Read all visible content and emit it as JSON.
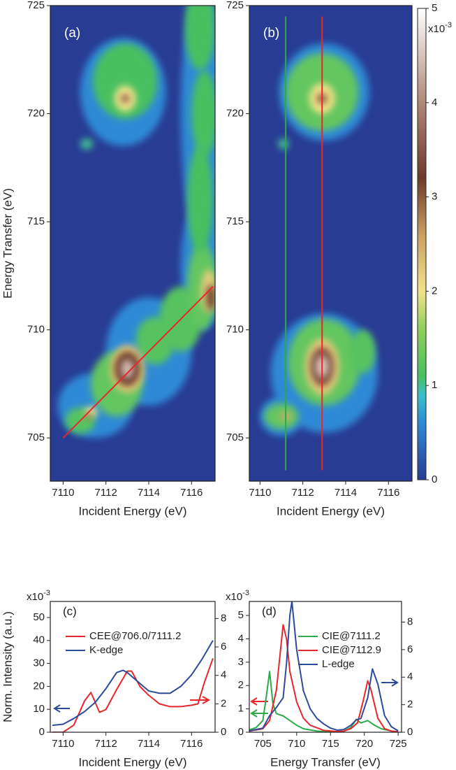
{
  "chart_data": [
    {
      "type": "heatmap",
      "label": "(a)",
      "xlabel": "Incident Energy (eV)",
      "ylabel": "Energy Transfer  (eV)",
      "xlim": [
        7109.4,
        7117.1
      ],
      "ylim": [
        703,
        725
      ],
      "xticks": [
        7110,
        7112,
        7114,
        7116
      ],
      "yticks": [
        705,
        710,
        715,
        720,
        725
      ],
      "peaks": [
        {
          "x": 7111.5,
          "y": 706.5,
          "value": 0.6,
          "width": 3.5,
          "height": 3
        },
        {
          "x": 7114,
          "y": 709,
          "value": 0.6,
          "width": 4,
          "height": 5
        },
        {
          "x": 7116.5,
          "y": 713,
          "value": 0.6,
          "width": 2,
          "height": 6
        },
        {
          "x": 7116.5,
          "y": 720,
          "value": 0.6,
          "width": 2,
          "height": 12
        },
        {
          "x": 7112.8,
          "y": 721,
          "value": 0.6,
          "width": 4,
          "height": 5
        },
        {
          "x": 7110.8,
          "y": 705.8,
          "value": 1.2,
          "width": 1.4,
          "height": 1.2
        },
        {
          "x": 7112.5,
          "y": 707.5,
          "value": 1.3,
          "width": 2.4,
          "height": 3
        },
        {
          "x": 7114.3,
          "y": 709.5,
          "value": 1.2,
          "width": 1.8,
          "height": 2.2
        },
        {
          "x": 7115.5,
          "y": 710.5,
          "value": 1.2,
          "width": 2,
          "height": 3
        },
        {
          "x": 7116.5,
          "y": 712,
          "value": 1.3,
          "width": 1.4,
          "height": 4
        },
        {
          "x": 7116.4,
          "y": 716,
          "value": 1.1,
          "width": 1.2,
          "height": 5
        },
        {
          "x": 7116.6,
          "y": 720,
          "value": 1.1,
          "width": 1.2,
          "height": 4
        },
        {
          "x": 7116.4,
          "y": 724,
          "value": 1.1,
          "width": 1.4,
          "height": 4
        },
        {
          "x": 7112.9,
          "y": 721.5,
          "value": 1.1,
          "width": 3,
          "height": 3.5
        },
        {
          "x": 7111.1,
          "y": 718.6,
          "value": 1.0,
          "width": 0.6,
          "height": 0.5
        },
        {
          "x": 7111.3,
          "y": 706.2,
          "value": 2.0,
          "width": 0.6,
          "height": 0.5
        },
        {
          "x": 7113,
          "y": 708.2,
          "value": 2.2,
          "width": 1.6,
          "height": 2.2
        },
        {
          "x": 7116.8,
          "y": 711.8,
          "value": 2.2,
          "width": 0.7,
          "height": 2
        },
        {
          "x": 7112.9,
          "y": 720.7,
          "value": 2.0,
          "width": 1.0,
          "height": 1.2
        },
        {
          "x": 7111.2,
          "y": 706.0,
          "value": 3.0,
          "width": 0.3,
          "height": 0.3
        },
        {
          "x": 7113,
          "y": 708.2,
          "value": 3.2,
          "width": 1.2,
          "height": 1.6
        },
        {
          "x": 7116.9,
          "y": 711.5,
          "value": 3.2,
          "width": 0.4,
          "height": 1.2
        },
        {
          "x": 7112.9,
          "y": 720.7,
          "value": 3.5,
          "width": 0.4,
          "height": 0.4
        },
        {
          "x": 7113,
          "y": 708.2,
          "value": 4.4,
          "width": 0.6,
          "height": 0.9
        }
      ],
      "lines": [
        {
          "color": "#e8262b",
          "x": [
            7110,
            7117
          ],
          "y": [
            705,
            712
          ]
        }
      ]
    },
    {
      "type": "heatmap",
      "label": "(b)",
      "xlabel": "Incident Energy (eV)",
      "xlim": [
        7109.5,
        7117.1
      ],
      "ylim": [
        703,
        725
      ],
      "xticks": [
        7110,
        7112,
        7114,
        7116
      ],
      "yticks": [
        705,
        710,
        715,
        720,
        725
      ],
      "peaks": [
        {
          "x": 7113,
          "y": 721,
          "value": 0.6,
          "width": 4.2,
          "height": 4.5
        },
        {
          "x": 7113,
          "y": 708,
          "value": 0.6,
          "width": 5,
          "height": 5.5
        },
        {
          "x": 7111,
          "y": 706,
          "value": 0.6,
          "width": 2,
          "height": 1.8
        },
        {
          "x": 7112.9,
          "y": 721,
          "value": 1.3,
          "width": 3.4,
          "height": 3.6
        },
        {
          "x": 7113,
          "y": 708.5,
          "value": 1.3,
          "width": 3.4,
          "height": 4
        },
        {
          "x": 7111,
          "y": 706,
          "value": 1.3,
          "width": 1.6,
          "height": 1.2
        },
        {
          "x": 7114.8,
          "y": 709,
          "value": 1.2,
          "width": 1.2,
          "height": 2
        },
        {
          "x": 7111.1,
          "y": 718.6,
          "value": 1.0,
          "width": 0.5,
          "height": 0.5
        },
        {
          "x": 7112.9,
          "y": 720.7,
          "value": 2.0,
          "width": 1.2,
          "height": 1.4
        },
        {
          "x": 7112.9,
          "y": 708.3,
          "value": 2.2,
          "width": 1.6,
          "height": 2.6
        },
        {
          "x": 7111.2,
          "y": 706,
          "value": 2.5,
          "width": 0.5,
          "height": 0.4
        },
        {
          "x": 7112.9,
          "y": 720.7,
          "value": 3.0,
          "width": 0.5,
          "height": 0.5
        },
        {
          "x": 7112.9,
          "y": 708.3,
          "value": 3.4,
          "width": 1.1,
          "height": 1.8
        },
        {
          "x": 7112.9,
          "y": 708.3,
          "value": 4.5,
          "width": 0.6,
          "height": 1.0
        }
      ],
      "lines": [
        {
          "color": "#2ca94a",
          "x": [
            7111.2,
            7111.2
          ],
          "y": [
            703.5,
            724.5
          ]
        },
        {
          "color": "#e8262b",
          "x": [
            7112.9,
            7112.9
          ],
          "y": [
            703.5,
            724.5
          ]
        }
      ]
    },
    {
      "type": "line",
      "label": "(c)",
      "xlabel": "Incident Energy (eV)",
      "ylabel": "Norm. Intensity  (a.u.)",
      "multiplier": {
        "base": "x10",
        "exp": "-3"
      },
      "legend": "upper left",
      "xlim": [
        7109.4,
        7117.1
      ],
      "ylim": [
        0,
        57
      ],
      "y2lim": [
        0,
        9.2
      ],
      "xticks": [
        7110,
        7112,
        7114,
        7116
      ],
      "yticks": [
        0,
        10,
        20,
        30,
        40,
        50
      ],
      "y2ticks": [
        0,
        2,
        4,
        6,
        8
      ],
      "series": [
        {
          "name": "CEE@706.0/7111.2",
          "color": "#e8262b",
          "axis": "y2",
          "x": [
            7109.5,
            7110,
            7110.5,
            7111,
            7111.3,
            7111.7,
            7112,
            7112.5,
            7113,
            7113.2,
            7113.6,
            7114,
            7114.5,
            7115,
            7115.5,
            7116,
            7116.3,
            7116.6,
            7117
          ],
          "values": [
            0,
            0,
            0.5,
            2.2,
            2.8,
            1.4,
            1.6,
            3.0,
            4.3,
            4.3,
            3.2,
            2.6,
            2.0,
            1.8,
            1.8,
            1.9,
            2.0,
            3.5,
            5.2
          ]
        },
        {
          "name": "K-edge",
          "color": "#2e4a9a",
          "x": [
            7109.5,
            7110,
            7110.5,
            7111,
            7111.5,
            7112,
            7112.5,
            7112.8,
            7113,
            7113.5,
            7114,
            7114.5,
            7115,
            7115.5,
            7116,
            7116.5,
            7117
          ],
          "values": [
            3,
            3.5,
            6,
            9,
            13,
            19,
            26,
            27,
            26,
            22,
            18,
            17,
            17,
            20,
            25,
            32,
            40
          ]
        }
      ]
    },
    {
      "type": "line",
      "label": "(d)",
      "xlabel": "Energy Transfer (eV)",
      "multiplier": {
        "base": "x10",
        "exp": "-3"
      },
      "legend": "upper right",
      "xlim": [
        703,
        725.5
      ],
      "ylim": [
        0,
        5.6
      ],
      "y2lim": [
        0,
        9.5
      ],
      "xticks": [
        705,
        710,
        715,
        720,
        725
      ],
      "yticks": [
        0,
        1,
        2,
        3,
        4,
        5
      ],
      "y2ticks": [
        0,
        2,
        4,
        6,
        8
      ],
      "series": [
        {
          "name": "CIE@7111.2",
          "color": "#2ca94a",
          "x": [
            703,
            704,
            705,
            705.5,
            706,
            706.5,
            707,
            708,
            709,
            710,
            711,
            713,
            715,
            717,
            718,
            718.8,
            719.5,
            720.5,
            721.5,
            722.5,
            724,
            725
          ],
          "values": [
            0.1,
            0.2,
            0.5,
            1.5,
            2.6,
            1.2,
            0.8,
            0.7,
            0.5,
            0.3,
            0.15,
            0.05,
            0.02,
            0.05,
            0.2,
            0.55,
            0.4,
            0.5,
            0.3,
            0.15,
            0.05,
            0.02
          ]
        },
        {
          "name": "CIE@7112.9",
          "color": "#e8262b",
          "x": [
            703,
            705,
            706,
            707,
            707.5,
            708,
            708.5,
            709,
            710,
            711,
            712,
            714,
            716,
            717,
            718,
            719,
            719.8,
            720.5,
            721,
            722,
            723,
            724,
            725
          ],
          "values": [
            0.05,
            0.15,
            0.5,
            1.8,
            3.2,
            4.6,
            4.0,
            2.6,
            1.3,
            0.6,
            0.3,
            0.08,
            0.03,
            0.05,
            0.15,
            0.4,
            1.3,
            2.2,
            1.8,
            0.6,
            0.15,
            0.05,
            0.02
          ]
        },
        {
          "name": "L-edge",
          "color": "#2e4a9a",
          "axis": "y2",
          "x": [
            703,
            705,
            706,
            707,
            708,
            708.5,
            709,
            709.3,
            710,
            711,
            712,
            713,
            714,
            715,
            716,
            717,
            718,
            718.8,
            719.5,
            720.5,
            721.2,
            722,
            723,
            724,
            725
          ],
          "values": [
            0.1,
            0.3,
            1.2,
            1.8,
            2.5,
            5,
            8.5,
            9.5,
            6,
            3,
            1.7,
            1.0,
            0.6,
            0.3,
            0.15,
            0.2,
            0.5,
            0.9,
            1.0,
            2.5,
            4.6,
            3.5,
            1.2,
            0.4,
            0.1
          ]
        }
      ]
    }
  ],
  "colorbar": {
    "lim": [
      0,
      5
    ],
    "ticks": [
      0,
      1,
      2,
      3,
      4,
      5
    ],
    "multiplier": {
      "base": "x10",
      "exp": "-3"
    },
    "colormap": [
      [
        0,
        "#283c94"
      ],
      [
        0.6,
        "#2e8ad6"
      ],
      [
        0.9,
        "#3cc0c8"
      ],
      [
        1.1,
        "#48c060"
      ],
      [
        1.6,
        "#8fd05a"
      ],
      [
        2.0,
        "#f3e28a"
      ],
      [
        2.6,
        "#c8a060"
      ],
      [
        3.2,
        "#6c3a2c"
      ],
      [
        4,
        "#b08878"
      ],
      [
        5,
        "#ffffff"
      ]
    ]
  }
}
